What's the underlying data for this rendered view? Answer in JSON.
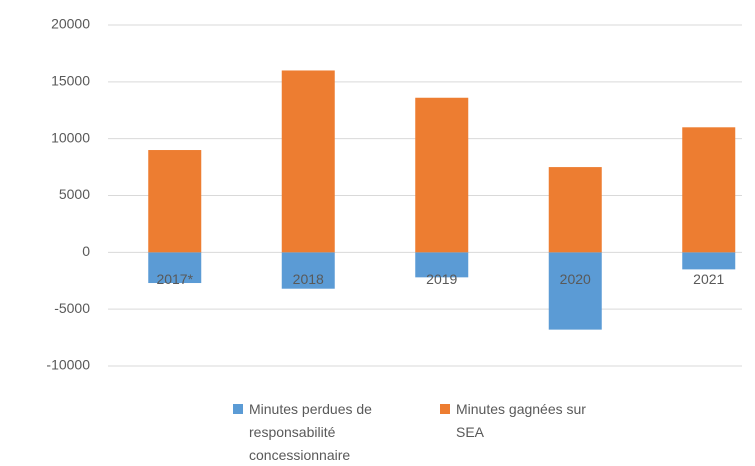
{
  "chart_data": {
    "type": "bar",
    "stacked": true,
    "categories": [
      "2017*",
      "2018",
      "2019",
      "2020",
      "2021"
    ],
    "series": [
      {
        "name": "Minutes perdues de responsabilité concessionnaire",
        "color": "#5b9bd5",
        "values": [
          -2700,
          -3200,
          -2200,
          -6800,
          -1500
        ]
      },
      {
        "name": "Minutes gagnées sur SEA",
        "color": "#ed7d31",
        "values": [
          9000,
          16000,
          13600,
          7500,
          11000
        ]
      }
    ],
    "ylim": [
      -10000,
      20000
    ],
    "yticks": [
      -10000,
      -5000,
      0,
      5000,
      10000,
      15000,
      20000
    ],
    "grid": true,
    "legend": "bottom"
  }
}
